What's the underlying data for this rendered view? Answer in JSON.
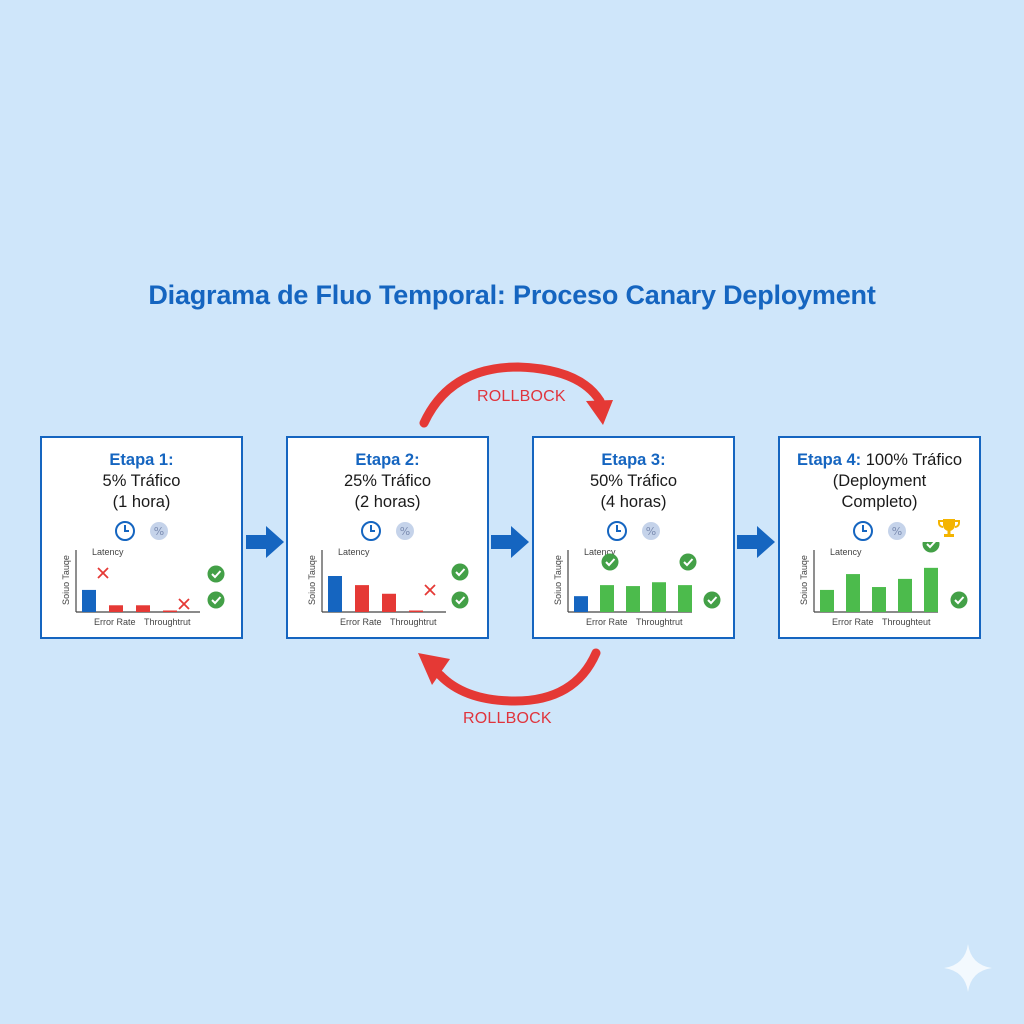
{
  "title": "Diagrama de Fluo Temporal: Proceso Canary Deployment",
  "stages": [
    {
      "label": "Etapa 1:",
      "line1": "5% Tráfico",
      "line2": "(1 hora)",
      "bars": [
        {
          "v": 0.46,
          "c": "blue"
        },
        {
          "v": 0.14,
          "c": "red"
        },
        {
          "v": 0.14,
          "c": "red"
        },
        {
          "v": 0.02,
          "c": "red"
        }
      ],
      "marks": [
        "fail",
        "fail",
        "pass",
        "pass"
      ]
    },
    {
      "label": "Etapa 2:",
      "line1": "25% Tráfico",
      "line2": "(2 horas)",
      "bars": [
        {
          "v": 0.75,
          "c": "blue"
        },
        {
          "v": 0.56,
          "c": "red"
        },
        {
          "v": 0.38,
          "c": "red"
        },
        {
          "v": 0.02,
          "c": "red"
        }
      ],
      "marks": [
        "fail",
        "pass",
        "pass"
      ]
    },
    {
      "label": "Etapa 3:",
      "line1": "50% Tráfico",
      "line2": "(4 horas)",
      "bars": [
        {
          "v": 0.33,
          "c": "blue"
        },
        {
          "v": 0.56,
          "c": "green"
        },
        {
          "v": 0.54,
          "c": "green"
        },
        {
          "v": 0.62,
          "c": "green"
        },
        {
          "v": 0.56,
          "c": "green"
        }
      ],
      "marks": [
        "pass",
        "pass",
        "pass"
      ]
    },
    {
      "label": "Etapa 4:",
      "line1": "100% Tráfico",
      "line2": "(Deployment",
      "line3": "Completo)",
      "bars": [
        {
          "v": 0.46,
          "c": "green"
        },
        {
          "v": 0.79,
          "c": "green"
        },
        {
          "v": 0.52,
          "c": "green"
        },
        {
          "v": 0.69,
          "c": "green"
        },
        {
          "v": 0.92,
          "c": "green"
        }
      ],
      "marks": [
        "pass",
        "pass"
      ],
      "trophy": true
    }
  ],
  "chart_labels": {
    "latency": "Latency",
    "yaxis": "Soiuo Tauqe",
    "error_rate": "Error Rate",
    "throughput": [
      "Throughtrut",
      "Throughtrut",
      "Throughtrut",
      "Throughteut"
    ]
  },
  "rollback_top": "ROLLBOCK",
  "rollback_bottom": "ROLLBOCK",
  "colors": {
    "blue": "#1565c0",
    "red": "#e53935",
    "green": "#4cbb4c",
    "title": "#1565c0",
    "rollback": "#e0343c"
  }
}
